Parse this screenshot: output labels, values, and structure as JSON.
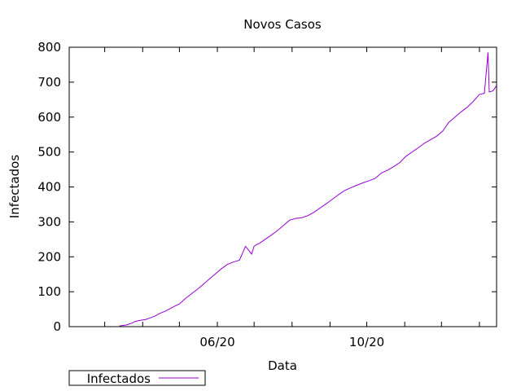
{
  "chart_data": {
    "type": "line",
    "title": "Novos Casos",
    "xlabel": "Data",
    "ylabel": "Infectados",
    "xlim": [
      "2020-02-01",
      "2021-01-15"
    ],
    "ylim": [
      0,
      800
    ],
    "y_ticks": [
      0,
      100,
      200,
      300,
      400,
      500,
      600,
      700,
      800
    ],
    "x_ticks": [
      {
        "date": "2020-03-01",
        "label": ""
      },
      {
        "date": "2020-04-01",
        "label": ""
      },
      {
        "date": "2020-05-01",
        "label": ""
      },
      {
        "date": "2020-06-01",
        "label": "06/20"
      },
      {
        "date": "2020-07-01",
        "label": ""
      },
      {
        "date": "2020-08-01",
        "label": ""
      },
      {
        "date": "2020-09-01",
        "label": ""
      },
      {
        "date": "2020-10-01",
        "label": "10/20"
      },
      {
        "date": "2020-11-01",
        "label": ""
      },
      {
        "date": "2020-12-01",
        "label": ""
      },
      {
        "date": "2021-01-01",
        "label": ""
      }
    ],
    "grid": false,
    "legend": {
      "position": "bottom-left",
      "entries": [
        "Infectados"
      ]
    },
    "series": [
      {
        "name": "Infectados",
        "color": "#9400d3",
        "x": [
          "2020-03-13",
          "2020-03-19",
          "2020-03-23",
          "2020-03-26",
          "2020-03-30",
          "2020-04-03",
          "2020-04-07",
          "2020-04-11",
          "2020-04-15",
          "2020-04-20",
          "2020-04-25",
          "2020-05-01",
          "2020-05-05",
          "2020-05-10",
          "2020-05-15",
          "2020-05-20",
          "2020-05-25",
          "2020-05-30",
          "2020-06-04",
          "2020-06-09",
          "2020-06-14",
          "2020-06-19",
          "2020-06-24",
          "2020-06-29",
          "2020-07-01",
          "2020-07-03",
          "2020-07-05",
          "2020-07-10",
          "2020-07-15",
          "2020-07-20",
          "2020-07-25",
          "2020-07-30",
          "2020-08-04",
          "2020-08-09",
          "2020-08-14",
          "2020-08-19",
          "2020-08-24",
          "2020-08-29",
          "2020-09-03",
          "2020-09-08",
          "2020-09-13",
          "2020-09-18",
          "2020-09-23",
          "2020-09-28",
          "2020-10-03",
          "2020-10-08",
          "2020-10-13",
          "2020-10-18",
          "2020-10-23",
          "2020-10-28",
          "2020-11-02",
          "2020-11-07",
          "2020-11-12",
          "2020-11-17",
          "2020-11-22",
          "2020-11-27",
          "2020-12-02",
          "2020-12-07",
          "2020-12-12",
          "2020-12-17",
          "2020-12-22",
          "2020-12-27",
          "2021-01-01",
          "2021-01-05",
          "2021-01-08",
          "2021-01-09",
          "2021-01-12",
          "2021-01-15"
        ],
        "y": [
          2,
          5,
          10,
          15,
          18,
          20,
          25,
          30,
          38,
          45,
          55,
          65,
          78,
          92,
          105,
          120,
          135,
          150,
          165,
          178,
          185,
          190,
          230,
          208,
          230,
          235,
          238,
          250,
          262,
          275,
          290,
          305,
          310,
          312,
          318,
          328,
          340,
          352,
          365,
          378,
          390,
          398,
          405,
          412,
          418,
          425,
          440,
          448,
          458,
          470,
          488,
          500,
          512,
          525,
          535,
          545,
          560,
          585,
          600,
          615,
          628,
          645,
          665,
          668,
          785,
          672,
          675,
          690
        ]
      }
    ]
  }
}
